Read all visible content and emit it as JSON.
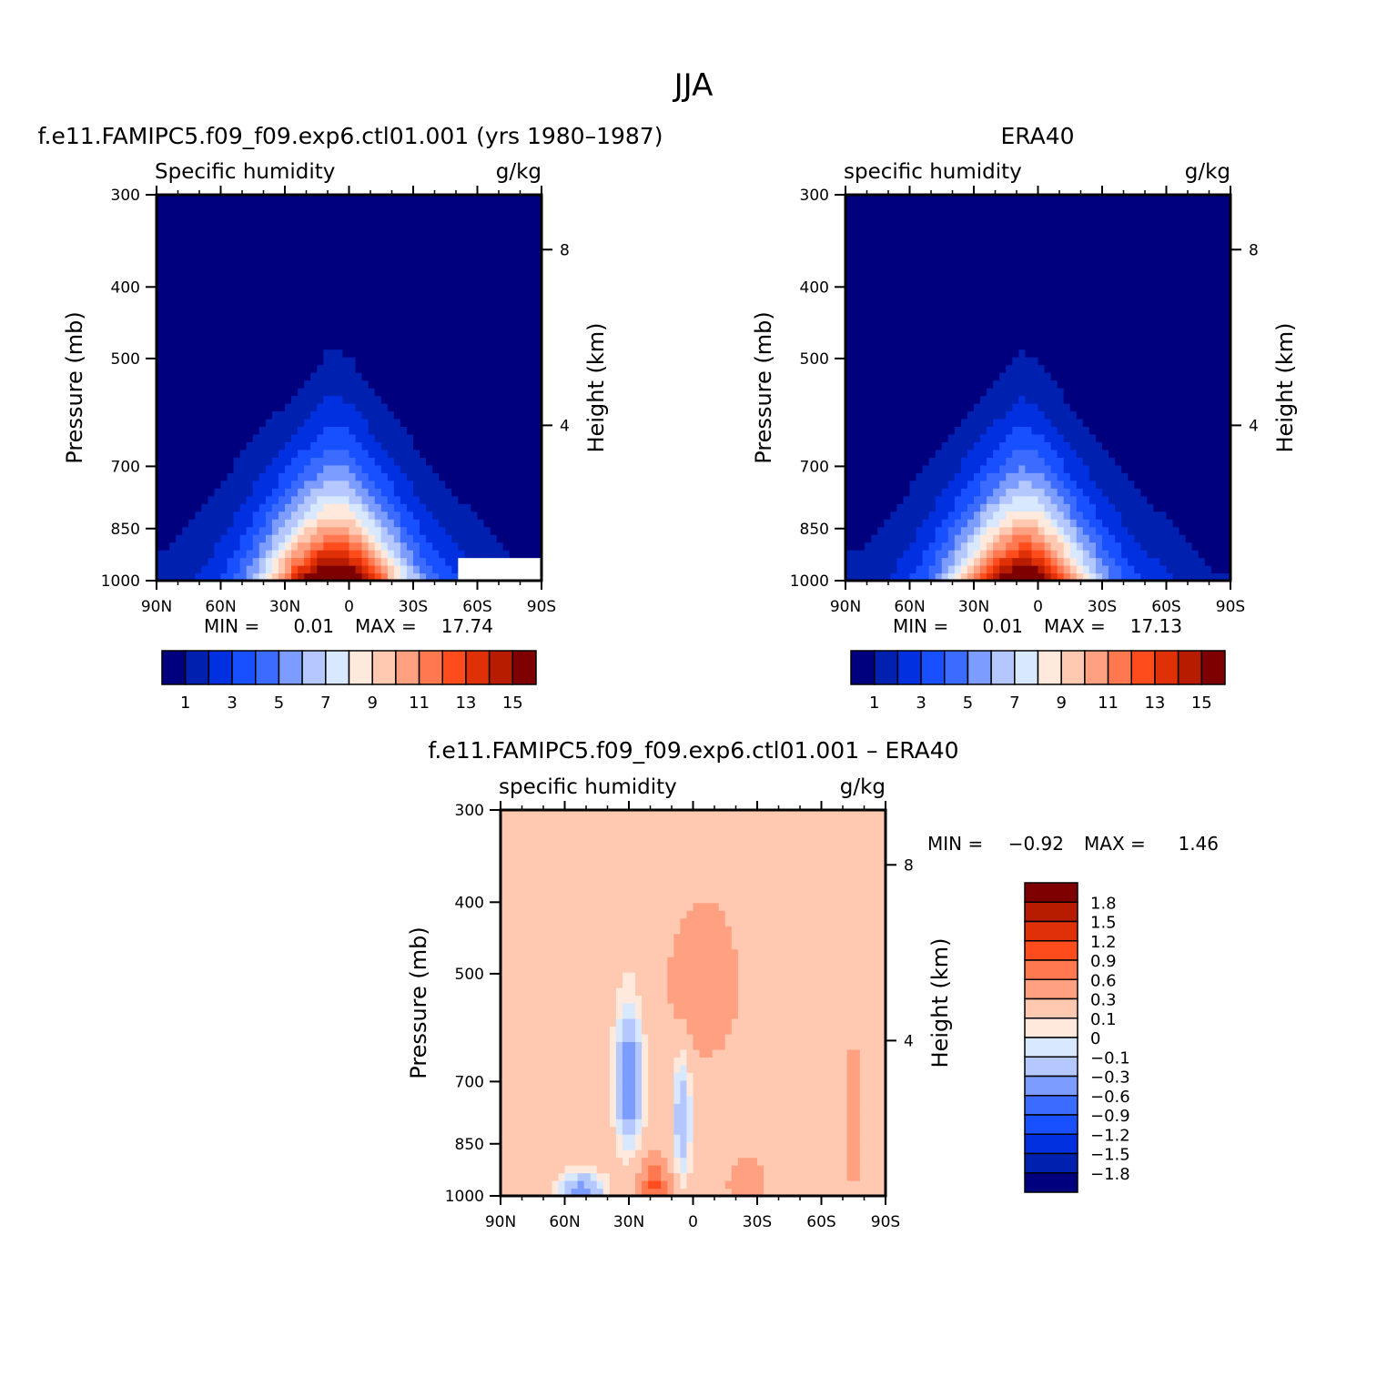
{
  "figure": {
    "title": "JJA"
  },
  "chart_data": [
    {
      "type": "contour",
      "title": "f.e11.FAMIPC5.f09_f09.exp6.ctl01.001 (yrs 1980–1987)",
      "left_string": "Specific humidity",
      "right_string": "g/kg",
      "xlabel": "",
      "ylabel": "Pressure (mb)",
      "right_label": "Height (km)",
      "x_ticks": [
        "90N",
        "60N",
        "30N",
        "0",
        "30S",
        "60S",
        "90S"
      ],
      "xlim": [
        90,
        -90
      ],
      "y_ticks": [
        300,
        400,
        500,
        700,
        850,
        1000
      ],
      "ylim": [
        1000,
        300
      ],
      "height_ticks": [
        8,
        4
      ],
      "stats": {
        "min_label": "MIN =",
        "min": "0.01",
        "max_label": "MAX =",
        "max": "17.74"
      },
      "field": {
        "lat": [
          90,
          60,
          30,
          15,
          10,
          0,
          -15,
          -30,
          -60,
          -90
        ],
        "top_pressure": [
          500,
          470,
          420,
          370,
          340,
          350,
          420,
          460,
          560,
          900
        ],
        "core_lat": 8,
        "core_width": 32,
        "max": 17.74,
        "no_data_lat_from": -50,
        "no_data_p_from": 940
      },
      "colorbar": {
        "orientation": "horizontal",
        "labels": [
          "1",
          "3",
          "5",
          "7",
          "9",
          "11",
          "13",
          "15"
        ]
      }
    },
    {
      "type": "contour",
      "title": "ERA40",
      "left_string": "specific humidity",
      "right_string": "g/kg",
      "xlabel": "",
      "ylabel": "Pressure (mb)",
      "right_label": "Height (km)",
      "x_ticks": [
        "90N",
        "60N",
        "30N",
        "0",
        "30S",
        "60S",
        "90S"
      ],
      "xlim": [
        90,
        -90
      ],
      "y_ticks": [
        300,
        400,
        500,
        700,
        850,
        1000
      ],
      "ylim": [
        1000,
        300
      ],
      "height_ticks": [
        8,
        4
      ],
      "stats": {
        "min_label": "MIN =",
        "min": "0.01",
        "max_label": "MAX =",
        "max": "17.13"
      },
      "field": {
        "lat": [
          90,
          60,
          30,
          15,
          10,
          0,
          -15,
          -30,
          -60,
          -90
        ],
        "top_pressure": [
          520,
          480,
          420,
          370,
          340,
          350,
          420,
          460,
          560,
          900
        ],
        "core_lat": 8,
        "core_width": 31,
        "max": 17.13
      },
      "colorbar": {
        "orientation": "horizontal",
        "labels": [
          "1",
          "3",
          "5",
          "7",
          "9",
          "11",
          "13",
          "15"
        ]
      }
    },
    {
      "type": "contour",
      "title": "f.e11.FAMIPC5.f09_f09.exp6.ctl01.001 – ERA40",
      "left_string": "specific humidity",
      "right_string": "g/kg",
      "xlabel": "",
      "ylabel": "Pressure (mb)",
      "right_label": "Height (km)",
      "x_ticks": [
        "90N",
        "60N",
        "30N",
        "0",
        "30S",
        "60S",
        "90S"
      ],
      "xlim": [
        90,
        -90
      ],
      "y_ticks": [
        300,
        400,
        500,
        700,
        850,
        1000
      ],
      "ylim": [
        1000,
        300
      ],
      "height_ticks": [
        8,
        4
      ],
      "stats": {
        "min_label": "MIN =",
        "min": "−0.92",
        "max_label": "MAX =",
        "max": "1.46"
      },
      "colorbar": {
        "orientation": "vertical",
        "labels": [
          "1.8",
          "1.5",
          "1.2",
          "0.9",
          "0.6",
          "0.3",
          "0.1",
          "0",
          "−0.1",
          "−0.3",
          "−0.6",
          "−0.9",
          "−1.2",
          "−1.5",
          "−1.8"
        ]
      }
    }
  ],
  "colors": {
    "hum_levels": [
      "#00007f",
      "#0020b0",
      "#0030e0",
      "#1850ff",
      "#3c6cff",
      "#7c9cff",
      "#b4c8ff",
      "#d8e8ff",
      "#ffe8dc",
      "#ffc8b0",
      "#ffa080",
      "#ff7850",
      "#ff4c1c",
      "#e03008",
      "#b81c00",
      "#7f0000"
    ],
    "diff_levels": [
      "#00007f",
      "#0020b0",
      "#0030e0",
      "#1850ff",
      "#3c6cff",
      "#7c9cff",
      "#b4c8ff",
      "#d8e8ff",
      "#ffe8dc",
      "#ffc8b0",
      "#ffa080",
      "#ff7850",
      "#ff4c1c",
      "#e03008",
      "#b81c00",
      "#7f0000"
    ]
  }
}
